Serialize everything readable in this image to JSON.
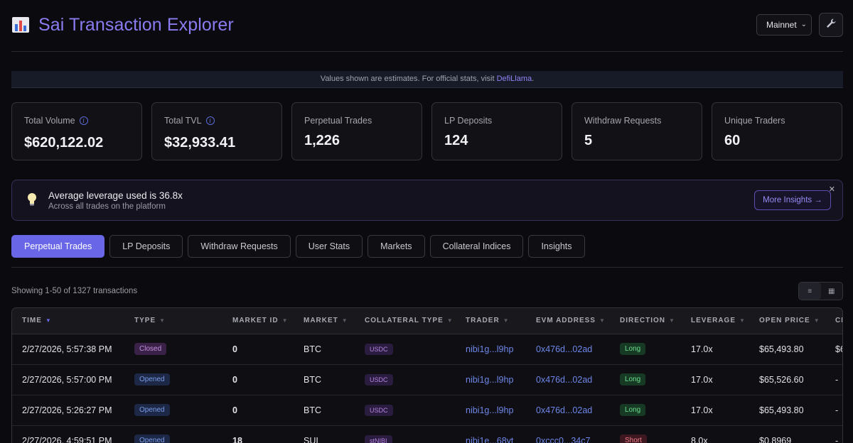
{
  "header": {
    "title": "Sai Transaction Explorer",
    "network": "Mainnet"
  },
  "notice": {
    "text": "Values shown are estimates. For official stats, visit ",
    "link": "DefiLlama",
    "suffix": "."
  },
  "stats": [
    {
      "label": "Total Volume",
      "value": "$620,122.02",
      "info": true
    },
    {
      "label": "Total TVL",
      "value": "$32,933.41",
      "info": true
    },
    {
      "label": "Perpetual Trades",
      "value": "1,226",
      "info": false
    },
    {
      "label": "LP Deposits",
      "value": "124",
      "info": false
    },
    {
      "label": "Withdraw Requests",
      "value": "5",
      "info": false
    },
    {
      "label": "Unique Traders",
      "value": "60",
      "info": false
    }
  ],
  "insight": {
    "title": "Average leverage used is 36.8x",
    "subtitle": "Across all trades on the platform",
    "button": "More Insights →"
  },
  "tabs": [
    "Perpetual Trades",
    "LP Deposits",
    "Withdraw Requests",
    "User Stats",
    "Markets",
    "Collateral Indices",
    "Insights"
  ],
  "showing": "Showing 1-50 of 1327 transactions",
  "table": {
    "columns": [
      "Time",
      "Type",
      "Market ID",
      "Market",
      "Collateral Type",
      "Trader",
      "EVM Address",
      "Direction",
      "Leverage",
      "Open Price",
      "Cl"
    ],
    "rows": [
      {
        "time": "2/27/2026, 5:57:38 PM",
        "type": "Closed",
        "market_id": "0",
        "market": "BTC",
        "collateral": "USDC",
        "trader": "nibi1g...l9hp",
        "evm": "0x476d...02ad",
        "direction": "Long",
        "leverage": "17.0x",
        "open_price": "$65,493.80",
        "close": "$6"
      },
      {
        "time": "2/27/2026, 5:57:00 PM",
        "type": "Opened",
        "market_id": "0",
        "market": "BTC",
        "collateral": "USDC",
        "trader": "nibi1g...l9hp",
        "evm": "0x476d...02ad",
        "direction": "Long",
        "leverage": "17.0x",
        "open_price": "$65,526.60",
        "close": "-"
      },
      {
        "time": "2/27/2026, 5:26:27 PM",
        "type": "Opened",
        "market_id": "0",
        "market": "BTC",
        "collateral": "USDC",
        "trader": "nibi1g...l9hp",
        "evm": "0x476d...02ad",
        "direction": "Long",
        "leverage": "17.0x",
        "open_price": "$65,493.80",
        "close": "-"
      },
      {
        "time": "2/27/2026, 4:59:51 PM",
        "type": "Opened",
        "market_id": "18",
        "market": "SUI",
        "collateral": "stNIBI",
        "trader": "nibi1e...68yt",
        "evm": "0xccc0...34c7",
        "direction": "Short",
        "leverage": "8.0x",
        "open_price": "$0.8969",
        "close": "-"
      }
    ]
  }
}
